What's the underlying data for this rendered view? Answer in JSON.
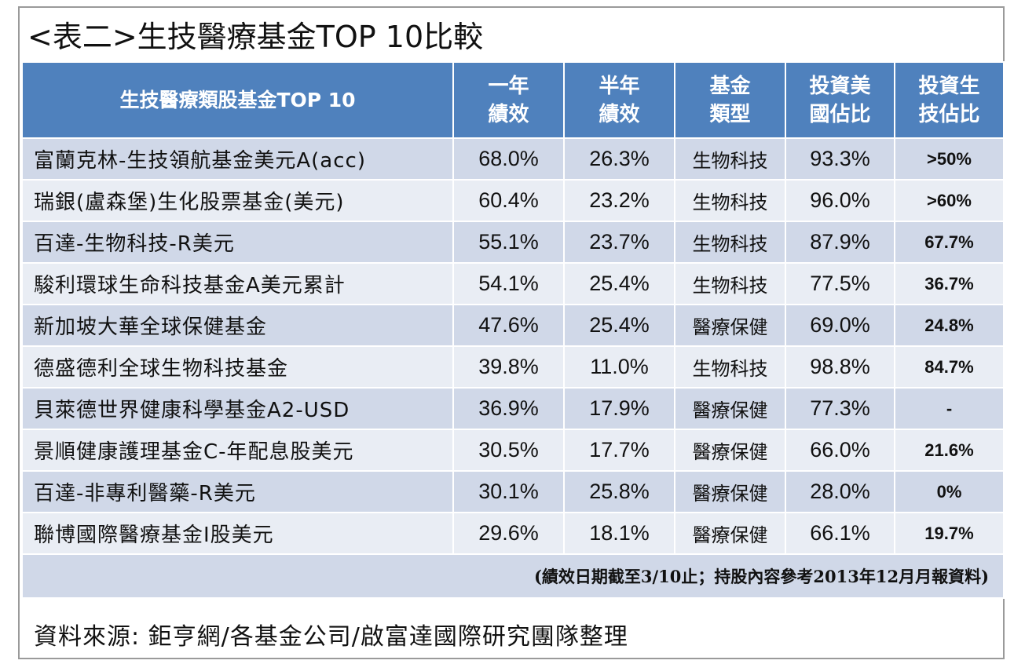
{
  "title": "<表二>生技醫療基金TOP 10比較",
  "headers": {
    "name": "生技醫療類股基金TOP 10",
    "one_year": "一年\n績效",
    "half_year": "半年\n績效",
    "fund_type": "基金\n類型",
    "us_ratio": "投資美\n國佔比",
    "biotech_ratio": "投資生\n技佔比"
  },
  "rows": [
    {
      "name": "富蘭克林-生技領航基金美元A(acc)",
      "one_year": "68.0%",
      "half_year": "26.3%",
      "type": "生物科技",
      "us_ratio": "93.3%",
      "biotech_ratio": ">50%"
    },
    {
      "name": "瑞銀(盧森堡)生化股票基金(美元)",
      "one_year": "60.4%",
      "half_year": "23.2%",
      "type": "生物科技",
      "us_ratio": "96.0%",
      "biotech_ratio": ">60%"
    },
    {
      "name": "百達-生物科技-R美元",
      "one_year": "55.1%",
      "half_year": "23.7%",
      "type": "生物科技",
      "us_ratio": "87.9%",
      "biotech_ratio": "67.7%"
    },
    {
      "name": "駿利環球生命科技基金A美元累計",
      "one_year": "54.1%",
      "half_year": "25.4%",
      "type": "生物科技",
      "us_ratio": "77.5%",
      "biotech_ratio": "36.7%"
    },
    {
      "name": "新加坡大華全球保健基金",
      "one_year": "47.6%",
      "half_year": "25.4%",
      "type": "醫療保健",
      "us_ratio": "69.0%",
      "biotech_ratio": "24.8%"
    },
    {
      "name": "德盛德利全球生物科技基金",
      "one_year": "39.8%",
      "half_year": "11.0%",
      "type": "生物科技",
      "us_ratio": "98.8%",
      "biotech_ratio": "84.7%"
    },
    {
      "name": "貝萊德世界健康科學基金A2-USD",
      "one_year": "36.9%",
      "half_year": "17.9%",
      "type": "醫療保健",
      "us_ratio": "77.3%",
      "biotech_ratio": "-"
    },
    {
      "name": "景順健康護理基金C-年配息股美元",
      "one_year": "30.5%",
      "half_year": "17.7%",
      "type": "醫療保健",
      "us_ratio": "66.0%",
      "biotech_ratio": "21.6%"
    },
    {
      "name": "百達-非專利醫藥-R美元",
      "one_year": "30.1%",
      "half_year": "25.8%",
      "type": "醫療保健",
      "us_ratio": "28.0%",
      "biotech_ratio": "0%"
    },
    {
      "name": "聯博國際醫療基金I股美元",
      "one_year": "29.6%",
      "half_year": "18.1%",
      "type": "醫療保健",
      "us_ratio": "66.1%",
      "biotech_ratio": "19.7%"
    }
  ],
  "note": "(績效日期截至3/10止；持股內容參考2013年12月月報資料)",
  "source": "資料來源: 鉅亨網/各基金公司/啟富達國際研究團隊整理",
  "colors": {
    "header_bg": "#4f81bd",
    "row_dark": "#d0d8e8",
    "row_light": "#e9edf4",
    "border": "#9a9a9a"
  }
}
